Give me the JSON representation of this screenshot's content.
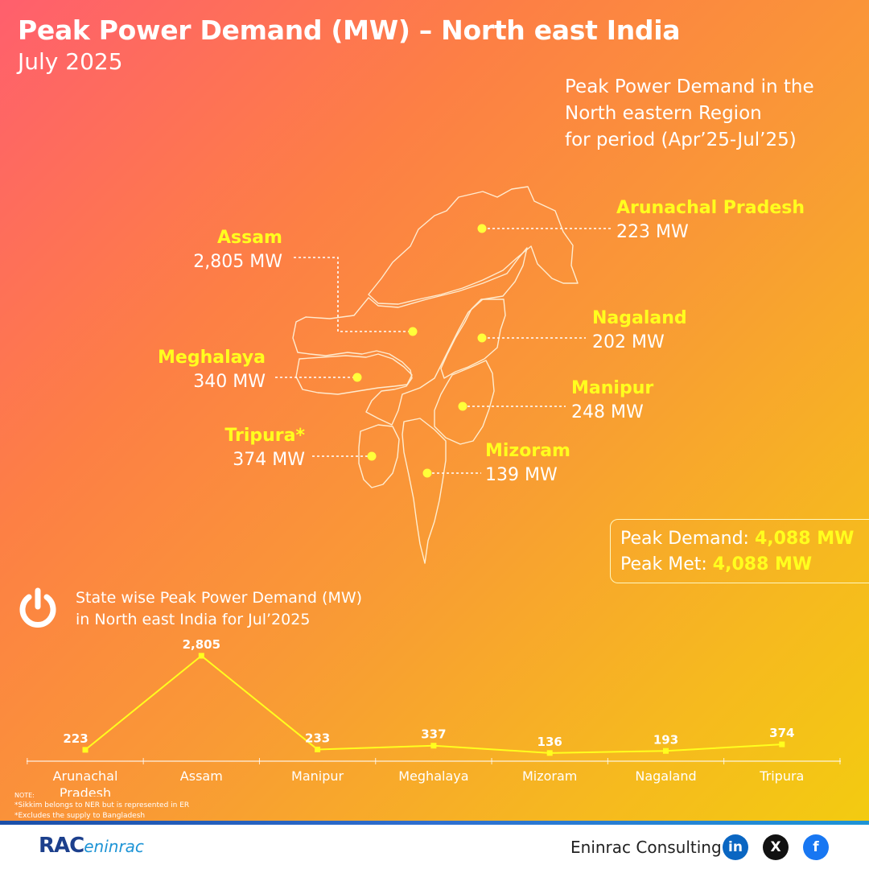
{
  "title": "Peak Power Demand (MW) – North east India",
  "subtitle": "July 2025",
  "intro": [
    "Peak Power Demand in the",
    "North eastern Region",
    "for period (Apr’25-Jul’25)"
  ],
  "states": {
    "arunachal": {
      "name": "Arunachal Pradesh",
      "value": "223 MW"
    },
    "assam": {
      "name": "Assam",
      "value": "2,805 MW"
    },
    "nagaland": {
      "name": "Nagaland",
      "value": "202 MW"
    },
    "meghalaya": {
      "name": "Meghalaya",
      "value": "340 MW"
    },
    "manipur": {
      "name": "Manipur",
      "value": "248 MW"
    },
    "tripura": {
      "name": "Tripura*",
      "value": "374 MW"
    },
    "mizoram": {
      "name": "Mizoram",
      "value": "139 MW"
    }
  },
  "summary": {
    "demand_label": "Peak Demand:",
    "demand_value": "4,088 MW",
    "met_label": "Peak Met:",
    "met_value": "4,088 MW"
  },
  "chart_title": [
    "State wise Peak Power Demand (MW)",
    "in North east India for Jul’2025"
  ],
  "chart_data": {
    "type": "line",
    "categories": [
      "Arunachal Pradesh",
      "Assam",
      "Manipur",
      "Meghalaya",
      "Mizoram",
      "Nagaland",
      "Tripura"
    ],
    "values": [
      223,
      2805,
      233,
      337,
      136,
      193,
      374
    ],
    "data_labels": [
      "223",
      "2,805",
      "233",
      "337",
      "136",
      "193",
      "374"
    ],
    "ylim": [
      0,
      2805
    ],
    "grid": false,
    "line_color": "#ffff1e"
  },
  "note": {
    "heading": "NOTE:",
    "lines": [
      "*Sikkim belongs to NER but is represented in ER",
      "*Excludes the supply to Bangladesh"
    ]
  },
  "footer": {
    "logo_main": "RAC",
    "logo_sub": "eninrac",
    "company": "Eninrac Consulting",
    "social": [
      "in",
      "X",
      "f"
    ]
  },
  "colors": {
    "accent": "#ffff1e",
    "linkedin": "#0a66c2",
    "x": "#111111",
    "facebook": "#1877f2"
  }
}
